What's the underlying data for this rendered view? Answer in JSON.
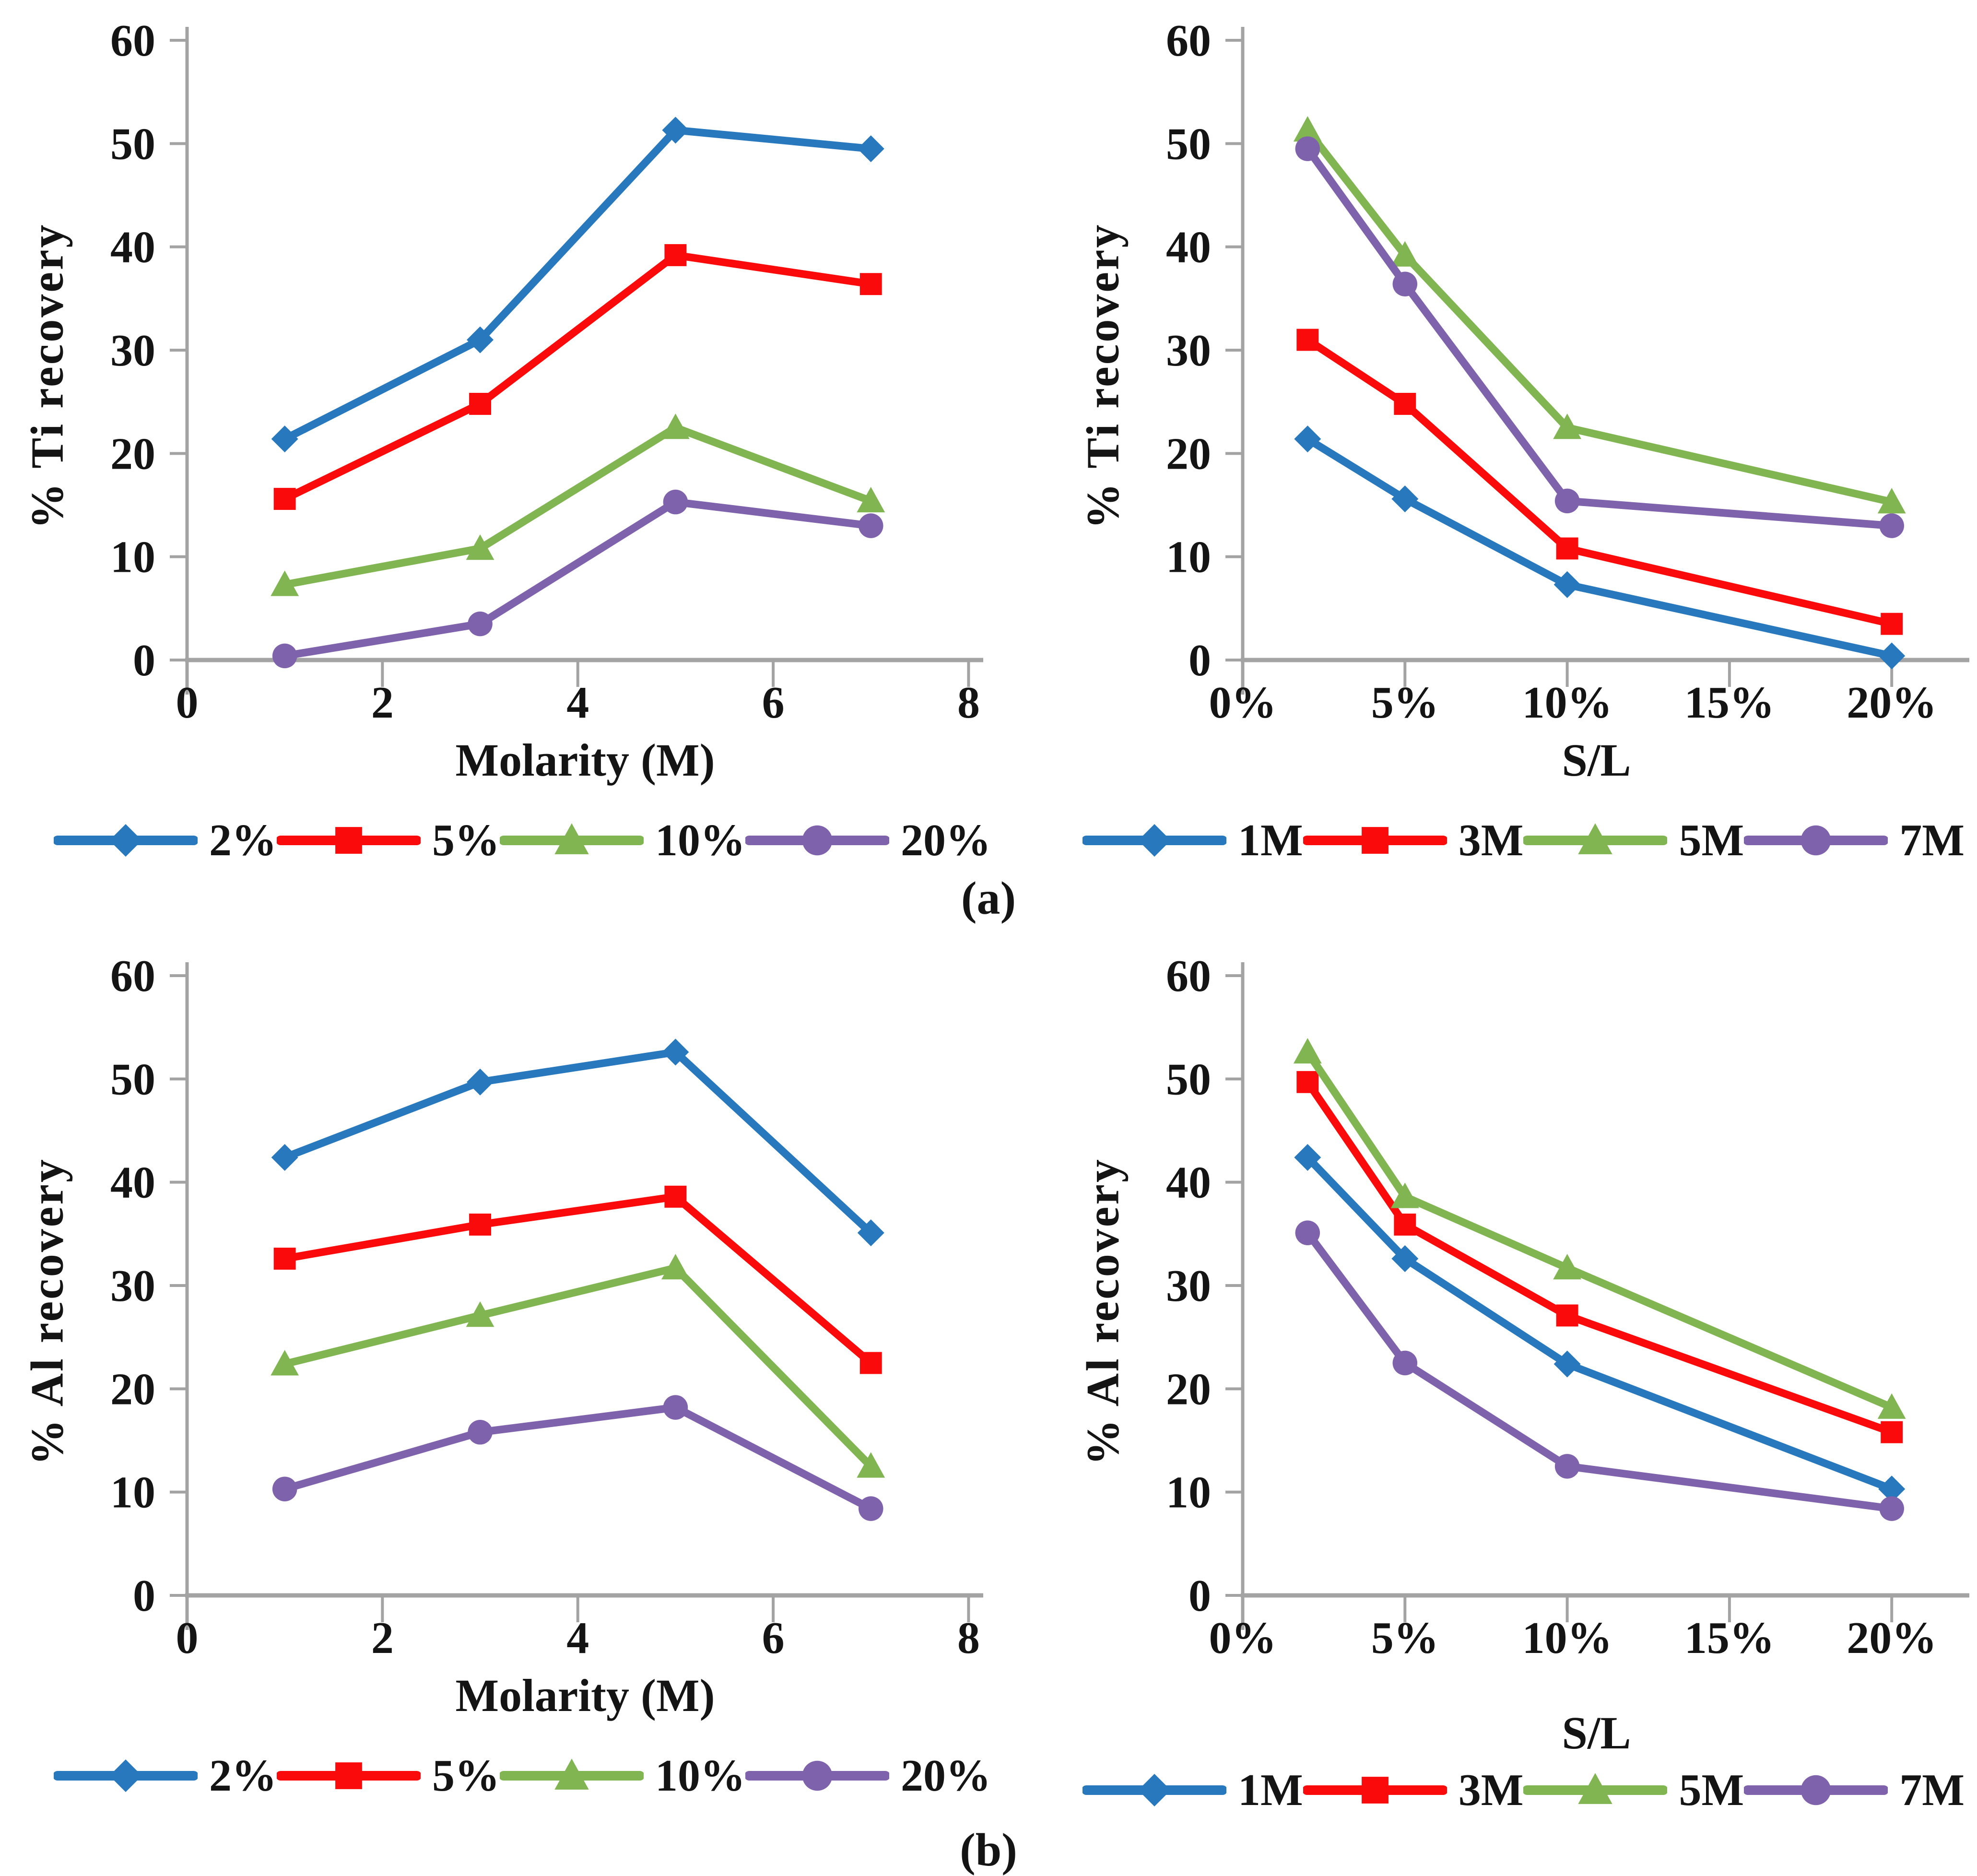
{
  "figure": {
    "captions": {
      "a": "(a)",
      "b": "(b)"
    }
  },
  "colors": {
    "blue": "#2878BE",
    "red": "#FA0A0A",
    "green": "#81B552",
    "purple": "#7F62AC",
    "axis": "#A3A3A3",
    "tick_text": "#141414"
  },
  "chart_data": [
    {
      "id": "ti-vs-molarity",
      "type": "line",
      "title": "",
      "xlabel": "Molarity (M)",
      "ylabel": "% Ti recovery",
      "x": [
        1,
        3,
        5,
        7
      ],
      "x_domain": [
        0,
        8.15
      ],
      "x_ticks": [
        0,
        2,
        4,
        6,
        8
      ],
      "x_tick_labels": [
        "0",
        "2",
        "4",
        "6",
        "8"
      ],
      "ylim": [
        0,
        60
      ],
      "y_ticks": [
        0,
        10,
        20,
        30,
        40,
        50,
        60
      ],
      "grid": false,
      "legend_position": "bottom",
      "xlabel_position": "near-axis",
      "series": [
        {
          "name": "2%",
          "color": "blue",
          "marker": "diamond",
          "values": [
            21.4,
            31.0,
            51.3,
            49.5
          ]
        },
        {
          "name": "5%",
          "color": "red",
          "marker": "square",
          "values": [
            15.6,
            24.8,
            39.2,
            36.4
          ]
        },
        {
          "name": "10%",
          "color": "green",
          "marker": "triangle",
          "values": [
            7.3,
            10.8,
            22.5,
            15.4
          ]
        },
        {
          "name": "20%",
          "color": "purple",
          "marker": "circle",
          "values": [
            0.4,
            3.5,
            15.3,
            13.0
          ]
        }
      ]
    },
    {
      "id": "ti-vs-sl",
      "type": "line",
      "title": "",
      "xlabel": "S/L",
      "ylabel": "% Ti recovery",
      "x": [
        2,
        5,
        10,
        20
      ],
      "x_domain": [
        0,
        21.8
      ],
      "x_ticks": [
        0,
        5,
        10,
        15,
        20
      ],
      "x_tick_labels": [
        "0%",
        "5%",
        "10%",
        "15%",
        "20%"
      ],
      "ylim": [
        0,
        60
      ],
      "y_ticks": [
        0,
        10,
        20,
        30,
        40,
        50,
        60
      ],
      "grid": false,
      "legend_position": "bottom",
      "xlabel_position": "near-axis",
      "series": [
        {
          "name": "1M",
          "color": "blue",
          "marker": "diamond",
          "values": [
            21.4,
            15.6,
            7.3,
            0.4
          ]
        },
        {
          "name": "3M",
          "color": "red",
          "marker": "square",
          "values": [
            31.0,
            24.8,
            10.8,
            3.5
          ]
        },
        {
          "name": "5M",
          "color": "green",
          "marker": "triangle",
          "values": [
            51.3,
            39.2,
            22.5,
            15.3
          ]
        },
        {
          "name": "7M",
          "color": "purple",
          "marker": "circle",
          "values": [
            49.5,
            36.4,
            15.4,
            13.0
          ]
        }
      ]
    },
    {
      "id": "al-vs-molarity",
      "type": "line",
      "title": "",
      "xlabel": "Molarity (M)",
      "ylabel": "% Al recovery",
      "x": [
        1,
        3,
        5,
        7
      ],
      "x_domain": [
        0,
        8.15
      ],
      "x_ticks": [
        0,
        2,
        4,
        6,
        8
      ],
      "x_tick_labels": [
        "0",
        "2",
        "4",
        "6",
        "8"
      ],
      "ylim": [
        0,
        60
      ],
      "y_ticks": [
        0,
        10,
        20,
        30,
        40,
        50,
        60
      ],
      "grid": false,
      "legend_position": "bottom",
      "xlabel_position": "near-axis",
      "series": [
        {
          "name": "2%",
          "color": "blue",
          "marker": "diamond",
          "values": [
            42.4,
            49.7,
            52.6,
            35.1
          ]
        },
        {
          "name": "5%",
          "color": "red",
          "marker": "square",
          "values": [
            32.6,
            35.9,
            38.6,
            22.5
          ]
        },
        {
          "name": "10%",
          "color": "green",
          "marker": "triangle",
          "values": [
            22.4,
            27.1,
            31.7,
            12.5
          ]
        },
        {
          "name": "20%",
          "color": "purple",
          "marker": "circle",
          "values": [
            10.3,
            15.8,
            18.2,
            8.4
          ]
        }
      ]
    },
    {
      "id": "al-vs-sl",
      "type": "line",
      "title": "",
      "xlabel": "S/L",
      "ylabel": "% Al recovery",
      "x": [
        2,
        5,
        10,
        20
      ],
      "x_domain": [
        0,
        21.8
      ],
      "x_ticks": [
        0,
        5,
        10,
        15,
        20
      ],
      "x_tick_labels": [
        "0%",
        "5%",
        "10%",
        "15%",
        "20%"
      ],
      "ylim": [
        0,
        60
      ],
      "y_ticks": [
        0,
        10,
        20,
        30,
        40,
        50,
        60
      ],
      "grid": false,
      "legend_position": "bottom",
      "xlabel_position": "above-legend",
      "series": [
        {
          "name": "1M",
          "color": "blue",
          "marker": "diamond",
          "values": [
            42.4,
            32.6,
            22.4,
            10.3
          ]
        },
        {
          "name": "3M",
          "color": "red",
          "marker": "square",
          "values": [
            49.7,
            35.9,
            27.1,
            15.8
          ]
        },
        {
          "name": "5M",
          "color": "green",
          "marker": "triangle",
          "values": [
            52.6,
            38.6,
            31.7,
            18.2
          ]
        },
        {
          "name": "7M",
          "color": "purple",
          "marker": "circle",
          "values": [
            35.1,
            22.5,
            12.5,
            8.4
          ]
        }
      ]
    }
  ]
}
